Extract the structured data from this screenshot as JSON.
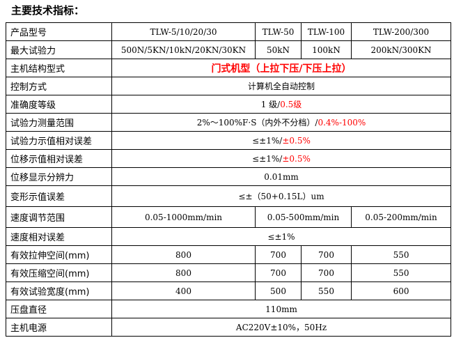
{
  "title": "主要技术指标：",
  "rows": {
    "model": {
      "label": "产品型号",
      "c1": "TLW-5/10/20/30",
      "c2": "TLW-50",
      "c3": "TLW-100",
      "c4": "TLW-200/300"
    },
    "maxforce": {
      "label": "最大试验力",
      "c1": "500N/5KN/10kN/20KN/30KN",
      "c2": "50kN",
      "c3": "100kN",
      "c4": "200kN/300KN"
    },
    "structure": {
      "label": "主机结构型式",
      "value": "门式机型（上拉下压/下压上拉）"
    },
    "control": {
      "label": "控制方式",
      "value": "计算机全自动控制"
    },
    "accuracy": {
      "label": "准确度等级",
      "value": "1 级/",
      "value_red": "0.5级"
    },
    "range": {
      "label": "试验力测量范围",
      "value": "2%～100%F·S（内外不分档）/",
      "value_red": "0.4%-100%"
    },
    "force_err": {
      "label": "试验力示值相对误差",
      "value": "≤±1%/",
      "value_red": "±0.5%"
    },
    "disp_err": {
      "label": "位移示值相对误差",
      "value": "≤±1%/",
      "value_red": "±0.5%"
    },
    "disp_res": {
      "label": "位移显示分辨力",
      "value": "0.01mm"
    },
    "deform_err": {
      "label": "变形示值误差",
      "value": "≤±（50+0.15L）um"
    },
    "speed_range": {
      "label": "速度调节范围",
      "c1": "0.05-1000mm/min",
      "c2": "0.05-500mm/min",
      "c3": "0.05-200mm/min"
    },
    "speed_err": {
      "label": "速度相对误差",
      "value": "≤±1%"
    },
    "tension_space": {
      "label": "有效拉伸空间(mm)",
      "c1": "800",
      "c2": "700",
      "c3": "700",
      "c4": "550"
    },
    "compress_space": {
      "label": "有效压缩空间(mm)",
      "c1": "800",
      "c2": "700",
      "c3": "700",
      "c4": "550"
    },
    "test_width": {
      "label": "有效试验宽度(mm)",
      "c1": "400",
      "c2": "500",
      "c3": "550",
      "c4": "600"
    },
    "platen": {
      "label": "压盘直径",
      "value": "110mm"
    },
    "power": {
      "label": "主机电源",
      "value": "AC220V±10%，50Hz"
    }
  },
  "colors": {
    "highlight": "#ff0000"
  }
}
